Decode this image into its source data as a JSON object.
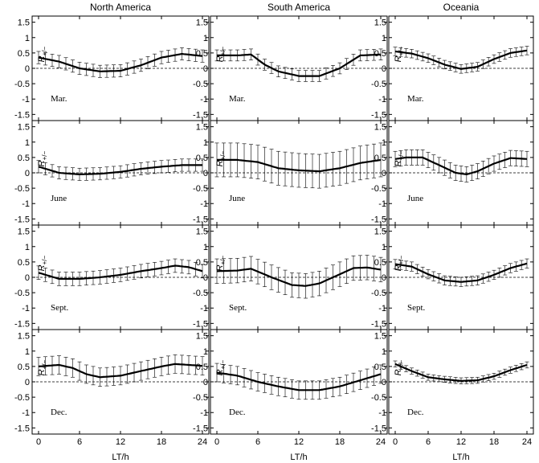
{
  "columns": [
    "North America",
    "South America",
    "Oceania"
  ],
  "months": [
    "Mar.",
    "June",
    "Sept.",
    "Dec."
  ],
  "ylabel": {
    "base": "R",
    "sub": "+/−"
  },
  "xlabel": "LT/h",
  "colors": {
    "line": "#000000",
    "axis": "#000000"
  },
  "chart_data": {
    "type": "line",
    "layout": "4x3 grid of panels, rows = months, columns = regions",
    "x_ticks": [
      0,
      6,
      12,
      18,
      24
    ],
    "xlim": [
      0,
      24
    ],
    "ylim": [
      -1.7,
      1.7
    ],
    "y_ticks": [
      "-1.5",
      "-1",
      "-0.5",
      "0",
      "0.5",
      "1",
      "1.5"
    ],
    "grid": false,
    "reference_line": {
      "y": 0,
      "style": "dashed"
    },
    "error_bar_x": [
      0,
      1,
      2,
      3,
      4,
      5,
      6,
      7,
      8,
      9,
      10,
      11,
      12,
      13,
      14,
      15,
      16,
      17,
      18,
      19,
      20,
      21,
      22,
      23,
      24
    ],
    "panels": [
      {
        "region": "North America",
        "month": "Mar.",
        "x": [
          0,
          3,
          6,
          9,
          12,
          15,
          18,
          21,
          24
        ],
        "y": [
          0.35,
          0.22,
          0.0,
          -0.1,
          -0.08,
          0.1,
          0.35,
          0.47,
          0.4
        ],
        "err": 0.2
      },
      {
        "region": "South America",
        "month": "Mar.",
        "x": [
          0,
          3,
          5,
          7,
          9,
          12,
          15,
          18,
          21,
          24
        ],
        "y": [
          0.42,
          0.42,
          0.45,
          0.12,
          -0.1,
          -0.25,
          -0.25,
          0.0,
          0.42,
          0.45
        ],
        "err": 0.18
      },
      {
        "region": "Oceania",
        "month": "Mar.",
        "x": [
          0,
          3,
          6,
          9,
          12,
          15,
          18,
          21,
          24
        ],
        "y": [
          0.55,
          0.48,
          0.33,
          0.12,
          -0.02,
          0.05,
          0.3,
          0.5,
          0.58
        ],
        "err": 0.14
      },
      {
        "region": "North America",
        "month": "June",
        "x": [
          0,
          3,
          6,
          9,
          12,
          15,
          18,
          21,
          24
        ],
        "y": [
          0.2,
          0.0,
          -0.05,
          -0.03,
          0.03,
          0.13,
          0.2,
          0.25,
          0.25
        ],
        "err": 0.2
      },
      {
        "region": "South America",
        "month": "June",
        "x": [
          0,
          3,
          6,
          9,
          12,
          15,
          18,
          21,
          24
        ],
        "y": [
          0.42,
          0.42,
          0.35,
          0.15,
          0.08,
          0.05,
          0.15,
          0.32,
          0.42
        ],
        "err": 0.55
      },
      {
        "region": "Oceania",
        "month": "June",
        "x": [
          0,
          2,
          5,
          8,
          11,
          13,
          15,
          18,
          21,
          24
        ],
        "y": [
          0.45,
          0.5,
          0.5,
          0.25,
          0.0,
          -0.05,
          0.05,
          0.3,
          0.48,
          0.45
        ],
        "err": 0.25
      },
      {
        "region": "North America",
        "month": "Sept.",
        "x": [
          0,
          3,
          6,
          9,
          12,
          15,
          18,
          20,
          22,
          24
        ],
        "y": [
          0.15,
          -0.05,
          -0.05,
          0.0,
          0.08,
          0.2,
          0.3,
          0.38,
          0.33,
          0.2
        ],
        "err": 0.22
      },
      {
        "region": "South America",
        "month": "Sept.",
        "x": [
          0,
          3,
          5,
          8,
          11,
          13,
          15,
          18,
          20,
          22,
          24
        ],
        "y": [
          0.2,
          0.22,
          0.28,
          0.0,
          -0.25,
          -0.28,
          -0.2,
          0.1,
          0.3,
          0.32,
          0.25
        ],
        "err": 0.4
      },
      {
        "region": "Oceania",
        "month": "Sept.",
        "x": [
          0,
          3,
          6,
          9,
          12,
          15,
          18,
          21,
          24
        ],
        "y": [
          0.43,
          0.35,
          0.1,
          -0.1,
          -0.15,
          -0.1,
          0.08,
          0.3,
          0.45
        ],
        "err": 0.15
      },
      {
        "region": "North America",
        "month": "Dec.",
        "x": [
          0,
          3,
          5,
          7,
          9,
          12,
          15,
          18,
          20,
          22,
          24
        ],
        "y": [
          0.5,
          0.55,
          0.45,
          0.25,
          0.15,
          0.2,
          0.35,
          0.5,
          0.58,
          0.55,
          0.52
        ],
        "err": 0.3
      },
      {
        "region": "South America",
        "month": "Dec.",
        "x": [
          0,
          3,
          6,
          9,
          12,
          15,
          18,
          21,
          24
        ],
        "y": [
          0.3,
          0.2,
          0.0,
          -0.15,
          -0.27,
          -0.27,
          -0.15,
          0.05,
          0.25
        ],
        "err": 0.3
      },
      {
        "region": "Oceania",
        "month": "Dec.",
        "x": [
          0,
          3,
          6,
          9,
          12,
          15,
          18,
          21,
          24
        ],
        "y": [
          0.58,
          0.35,
          0.15,
          0.08,
          0.03,
          0.05,
          0.18,
          0.38,
          0.55
        ],
        "err": 0.1
      }
    ]
  }
}
